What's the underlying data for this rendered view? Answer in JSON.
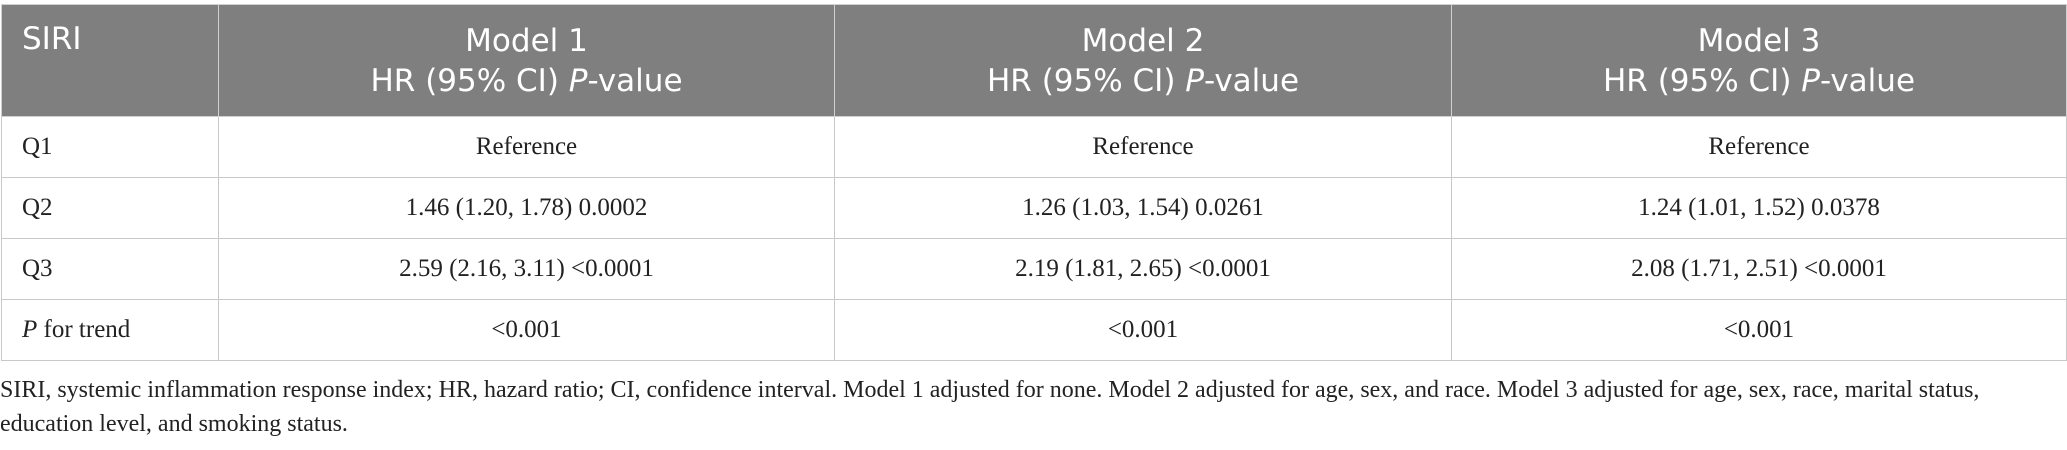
{
  "table": {
    "header": [
      {
        "line1": "SIRI"
      },
      {
        "line1": "Model 1",
        "pre": "HR (95% CI) ",
        "italic": "P",
        "post": "-value"
      },
      {
        "line1": "Model 2",
        "pre": "HR (95% CI) ",
        "italic": "P",
        "post": "-value"
      },
      {
        "line1": "Model 3",
        "pre": "HR (95% CI) ",
        "italic": "P",
        "post": "-value"
      }
    ],
    "rows": [
      {
        "label": "Q1",
        "cells": [
          "Reference",
          "Reference",
          "Reference"
        ]
      },
      {
        "label": "Q2",
        "cells": [
          "1.46 (1.20, 1.78) 0.0002",
          "1.26 (1.03, 1.54) 0.0261",
          "1.24 (1.01, 1.52) 0.0378"
        ]
      },
      {
        "label": "Q3",
        "cells": [
          "2.59 (2.16, 3.11) <0.0001",
          "2.19 (1.81, 2.65) <0.0001",
          "2.08 (1.71, 2.51) <0.0001"
        ]
      },
      {
        "label_italic": "P",
        "label": " for trend",
        "cells": [
          "<0.001",
          "<0.001",
          "<0.001"
        ]
      }
    ],
    "footnote": "SIRI, systemic inflammation response index; HR, hazard ratio; CI, confidence interval. Model 1 adjusted for none. Model 2 adjusted for age, sex, and race. Model 3 adjusted for age, sex, race, marital status, education level, and smoking status."
  }
}
